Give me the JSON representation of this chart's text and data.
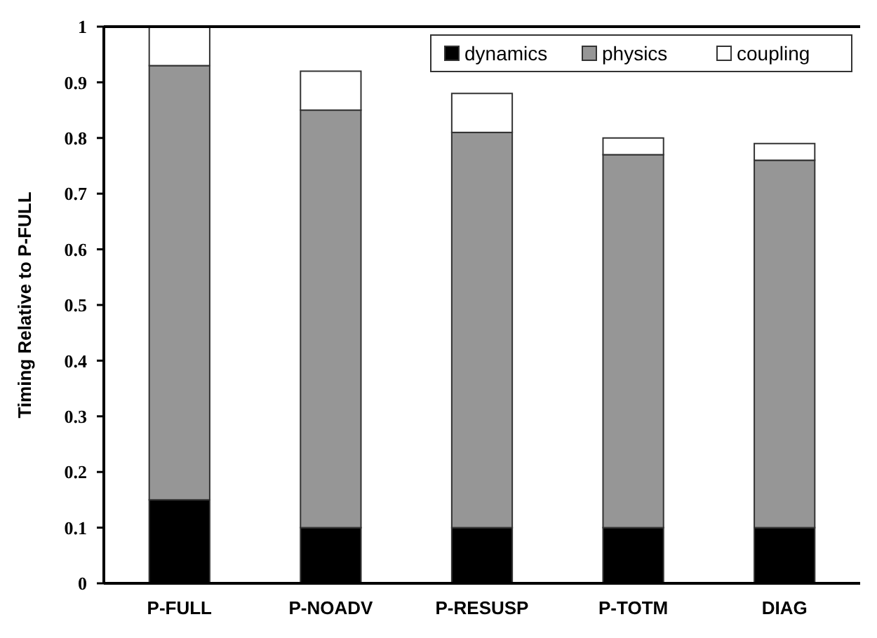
{
  "chart_data": {
    "type": "bar",
    "stacked": true,
    "ylabel": "Timing Relative to P-FULL",
    "categories": [
      "P-FULL",
      "P-NOADV",
      "P-RESUSP",
      "P-TOTM",
      "DIAG"
    ],
    "series": [
      {
        "name": "dynamics",
        "color": "#000000",
        "values": [
          0.15,
          0.1,
          0.1,
          0.1,
          0.1
        ]
      },
      {
        "name": "physics",
        "color": "#969696",
        "values": [
          0.78,
          0.75,
          0.71,
          0.67,
          0.66
        ]
      },
      {
        "name": "coupling",
        "color": "#ffffff",
        "values": [
          0.07,
          0.07,
          0.07,
          0.03,
          0.03
        ]
      }
    ],
    "ylim": [
      0,
      1
    ],
    "yticks": [
      0,
      0.1,
      0.2,
      0.3,
      0.4,
      0.5,
      0.6,
      0.7,
      0.8,
      0.9,
      1
    ],
    "grid": false,
    "legend": "top right"
  }
}
